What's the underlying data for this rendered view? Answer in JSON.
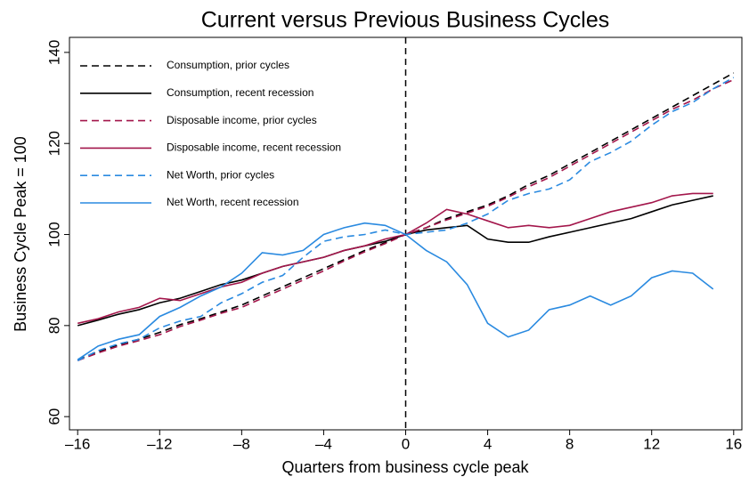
{
  "chart_data": {
    "type": "line",
    "title": "Current versus Previous Business Cycles",
    "x_label": "Quarters from business cycle peak",
    "y_label": "Business Cycle Peak = 100",
    "x": [
      -16,
      -15,
      -14,
      -13,
      -12,
      -11,
      -10,
      -9,
      -8,
      -7,
      -6,
      -5,
      -4,
      -3,
      -2,
      -1,
      0,
      1,
      2,
      3,
      4,
      5,
      6,
      7,
      8,
      9,
      10,
      11,
      12,
      13,
      14,
      15,
      16
    ],
    "xlim": [
      -16.4,
      16.4
    ],
    "ylim": [
      57.1,
      143.3
    ],
    "xticks": [
      {
        "value": -16,
        "label": "–16"
      },
      {
        "value": -12,
        "label": "–12"
      },
      {
        "value": -8,
        "label": "–8"
      },
      {
        "value": -4,
        "label": "–4"
      },
      0,
      4,
      8,
      12,
      16
    ],
    "yticks": [
      60,
      80,
      100,
      120,
      140
    ],
    "vline": 0,
    "legend": "top-left",
    "series": [
      {
        "name": "Consumption, prior cycles",
        "color": "#000000",
        "dash": "dashed",
        "values": [
          72.5,
          74.3,
          75.8,
          77,
          78.5,
          80.2,
          81.5,
          83,
          84.5,
          86.5,
          88.5,
          90.5,
          92.5,
          94.5,
          96.5,
          98.2,
          100,
          101.5,
          103.5,
          105,
          106.5,
          108.5,
          111,
          113,
          115.5,
          118,
          120.5,
          123,
          125.5,
          128,
          130.5,
          133,
          135.5
        ]
      },
      {
        "name": "Consumption, recent recession",
        "color": "#000000",
        "dash": "solid",
        "values": [
          80,
          81.2,
          82.5,
          83.5,
          85,
          86,
          87.5,
          89,
          90,
          91.5,
          93,
          94,
          95,
          96.5,
          97.5,
          98.5,
          100,
          101,
          101.5,
          102,
          99,
          98.3,
          98.3,
          99.5,
          100.5,
          101.5,
          102.5,
          103.5,
          105,
          106.5,
          107.5,
          108.5,
          null
        ]
      },
      {
        "name": "Disposable income, prior cycles",
        "color": "#a3164b",
        "dash": "dashed",
        "values": [
          72.3,
          74,
          75.5,
          76.7,
          78,
          79.8,
          81.2,
          82.7,
          84,
          86,
          88,
          90,
          92,
          94.2,
          96.2,
          98,
          100,
          101.5,
          103.2,
          104.7,
          106.2,
          108.2,
          110.5,
          112.5,
          115,
          117.5,
          120,
          122.5,
          125,
          127.5,
          129.5,
          132,
          134
        ]
      },
      {
        "name": "Disposable income, recent recession",
        "color": "#a3164b",
        "dash": "solid",
        "values": [
          80.5,
          81.5,
          83,
          84,
          86,
          85.5,
          87,
          88.5,
          89.5,
          91.5,
          93,
          94,
          95,
          96.5,
          97.5,
          99,
          100,
          102.5,
          105.5,
          104.5,
          103,
          101.5,
          102,
          101.5,
          102,
          103.5,
          105,
          106,
          107,
          108.5,
          109,
          109,
          null
        ]
      },
      {
        "name": "Net Worth, prior cycles",
        "color": "#2a8ae0",
        "dash": "dashed",
        "values": [
          72.3,
          74.5,
          76,
          77,
          79.5,
          81,
          82,
          85,
          87,
          89.5,
          91,
          95,
          98.5,
          99.5,
          100,
          101,
          100,
          100.5,
          101,
          102.5,
          104.5,
          107.5,
          109,
          110,
          112,
          116,
          118,
          120.5,
          124,
          127,
          129,
          132,
          134.5
        ]
      },
      {
        "name": "Net Worth, recent recession",
        "color": "#2a8ae0",
        "dash": "solid",
        "values": [
          72.5,
          75.5,
          77,
          78,
          82,
          84,
          86.5,
          88.5,
          91.5,
          96,
          95.5,
          96.5,
          100,
          101.5,
          102.5,
          102,
          100,
          96.5,
          94,
          89,
          80.5,
          77.5,
          79,
          83.5,
          84.5,
          86.5,
          84.5,
          86.5,
          90.5,
          92,
          91.5,
          88,
          null
        ]
      }
    ]
  }
}
